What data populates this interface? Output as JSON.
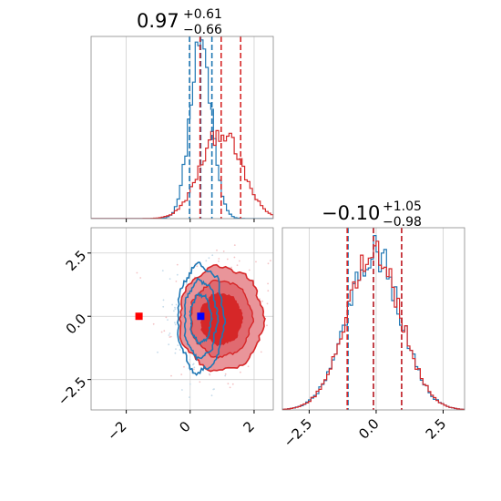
{
  "chart_data": {
    "type": "corner",
    "colors": {
      "blue": "#1f77b4",
      "red": "#d62728",
      "red_light": "#e9959a",
      "marker_blue": "#0000ff",
      "marker_red": "#ff0000"
    },
    "panels": [
      {
        "id": "hist_x",
        "type": "histogram",
        "title": {
          "median": "0.97",
          "upper": "+0.61",
          "lower": "−0.66"
        },
        "xlim": [
          -3.1,
          2.6
        ],
        "x_ticks": [
          -2,
          0,
          2
        ],
        "series": [
          {
            "color": "blue",
            "center": 0.33,
            "sigma": 0.34,
            "height": 1.0,
            "n_lines": 3
          },
          {
            "color": "red",
            "center": 0.97,
            "sigma": 0.64,
            "height": 0.5
          }
        ],
        "quantile_lines": {
          "blue": [
            -0.02,
            0.33,
            0.68
          ],
          "red": [
            0.31,
            0.97,
            1.58
          ]
        }
      },
      {
        "id": "scatter_xy",
        "type": "contour",
        "xlim": [
          -3.1,
          2.6
        ],
        "ylim": [
          -3.7,
          3.5
        ],
        "x_ticks": [
          -2,
          0,
          2
        ],
        "x_tick_labels": [
          "−2",
          "0",
          "2"
        ],
        "y_ticks": [
          -2.5,
          0,
          2.5
        ],
        "y_tick_labels": [
          "−2.5",
          "0.0",
          "2.5"
        ],
        "blue": {
          "center": [
            0.33,
            -0.1
          ],
          "sigma": [
            0.34,
            1.0
          ]
        },
        "red": {
          "center": [
            0.97,
            -0.1
          ],
          "sigma": [
            0.64,
            1.0
          ]
        },
        "markers": [
          {
            "x": -1.6,
            "y": 0.0,
            "color": "marker_red"
          },
          {
            "x": 0.33,
            "y": 0.0,
            "color": "marker_blue"
          }
        ]
      },
      {
        "id": "hist_y",
        "type": "histogram",
        "title": {
          "median": "−0.10",
          "upper": "+1.05",
          "lower": "−0.98"
        },
        "xlim": [
          -3.5,
          3.3
        ],
        "x_ticks": [
          -2.5,
          0,
          2.5
        ],
        "x_tick_labels": [
          "−2.5",
          "0.0",
          "2.5"
        ],
        "series": [
          {
            "color": "blue",
            "center": -0.1,
            "sigma": 1.0,
            "height": 1.0
          },
          {
            "color": "red",
            "center": -0.1,
            "sigma": 1.0,
            "height": 1.0
          }
        ],
        "quantile_lines": {
          "blue": [
            -1.05,
            -0.1,
            0.95
          ],
          "red": [
            -1.08,
            -0.1,
            0.95
          ]
        }
      }
    ]
  }
}
